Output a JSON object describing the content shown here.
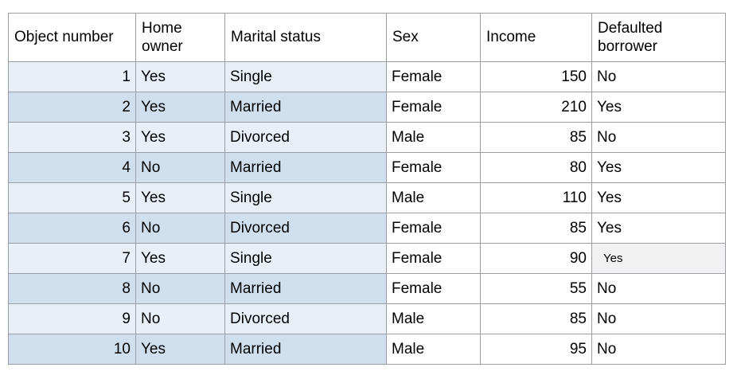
{
  "chart_data": {
    "type": "table",
    "columns": [
      "Object number",
      "Home owner",
      "Marital status",
      "Sex",
      "Income",
      "Defaulted borrower"
    ],
    "rows": [
      [
        1,
        "Yes",
        "Single",
        "Female",
        150,
        "No"
      ],
      [
        2,
        "Yes",
        "Married",
        "Female",
        210,
        "Yes"
      ],
      [
        3,
        "Yes",
        "Divorced",
        "Male",
        85,
        "No"
      ],
      [
        4,
        "No",
        "Married",
        "Female",
        80,
        "Yes"
      ],
      [
        5,
        "Yes",
        "Single",
        "Male",
        110,
        "Yes"
      ],
      [
        6,
        "No",
        "Divorced",
        "Female",
        85,
        "Yes"
      ],
      [
        7,
        "Yes",
        "Single",
        "Female",
        90,
        "Yes"
      ],
      [
        8,
        "No",
        "Married",
        "Female",
        55,
        "No"
      ],
      [
        9,
        "No",
        "Divorced",
        "Male",
        85,
        "No"
      ],
      [
        10,
        "Yes",
        "Married",
        "Male",
        95,
        "No"
      ]
    ],
    "layout": {
      "banded_columns": [
        "Object number",
        "Home owner",
        "Marital status"
      ],
      "right_aligned_columns": [
        "Object number",
        "Income"
      ],
      "header_background": "#ffffff"
    }
  },
  "highlighted_cell": {
    "row_number": 7,
    "column": "Defaulted borrower",
    "value": "Yes",
    "background": "#f1f1f2"
  },
  "colors": {
    "row_band_light": "#e9eff8",
    "row_band_dark": "#cfdfee",
    "cell_border": "#9b9da2",
    "text": "#000000",
    "page_background": "#ffffff"
  }
}
